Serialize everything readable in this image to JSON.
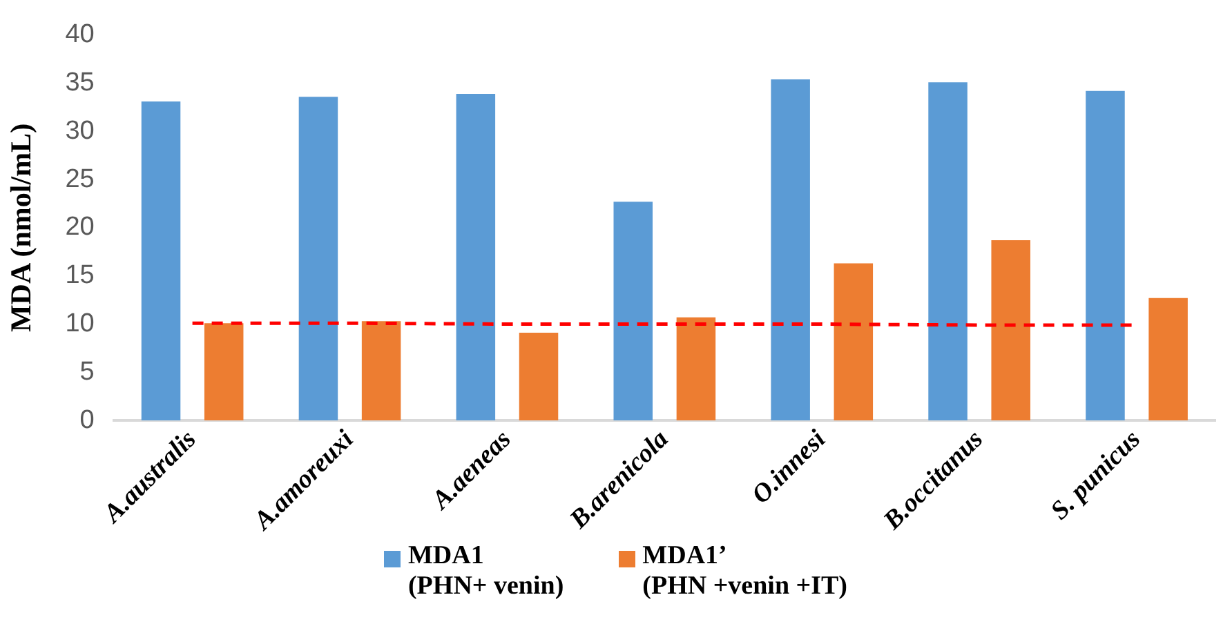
{
  "chart_data": {
    "type": "bar",
    "ylabel": "MDA (nmol/mL)",
    "categories": [
      "A.australis",
      "A.amoreuxi",
      "A.aeneas",
      "B.arenicola",
      "O.innesi",
      "B.occitanus",
      "S. punicus"
    ],
    "series": [
      {
        "name": "MDA1\n(PHN+ venin)",
        "color": "#5b9bd5",
        "values": [
          33.1,
          33.6,
          33.9,
          22.7,
          35.4,
          35.1,
          34.2
        ]
      },
      {
        "name": "MDA1’\n(PHN +venin +IT)",
        "color": "#ed7d31",
        "values": [
          10.1,
          10.3,
          9.1,
          10.7,
          16.3,
          18.7,
          12.7
        ]
      },
      {
        "type": "line",
        "color": "#ff0000",
        "line_style": "dashed",
        "marker": "none",
        "values": [
          10.1,
          10.1,
          10.0,
          10.0,
          10.0,
          9.9,
          9.9
        ]
      }
    ],
    "ylim": [
      0,
      40
    ],
    "yticks": [
      0,
      5,
      10,
      15,
      20,
      25,
      30,
      35,
      40
    ],
    "grid": false,
    "legend": "bottom"
  }
}
